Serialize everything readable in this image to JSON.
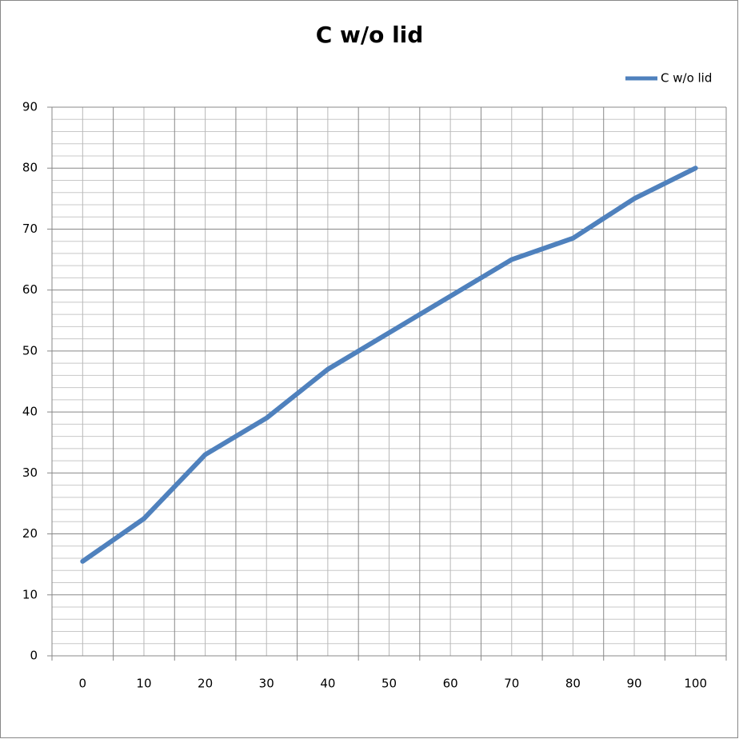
{
  "chart_data": {
    "type": "line",
    "title": "C w/o lid",
    "categories": [
      "0",
      "10",
      "20",
      "30",
      "40",
      "50",
      "60",
      "70",
      "80",
      "90",
      "100"
    ],
    "series": [
      {
        "name": "C w/o lid",
        "color": "#4f81bd",
        "values": [
          15.5,
          22.5,
          33,
          39,
          47,
          53,
          59,
          65,
          68.5,
          75,
          80
        ]
      }
    ],
    "ylim": [
      0,
      90
    ],
    "yticks": [
      0,
      10,
      20,
      30,
      40,
      50,
      60,
      70,
      80,
      90
    ],
    "grid": true,
    "minor_grid": true,
    "legend": "top-right"
  }
}
